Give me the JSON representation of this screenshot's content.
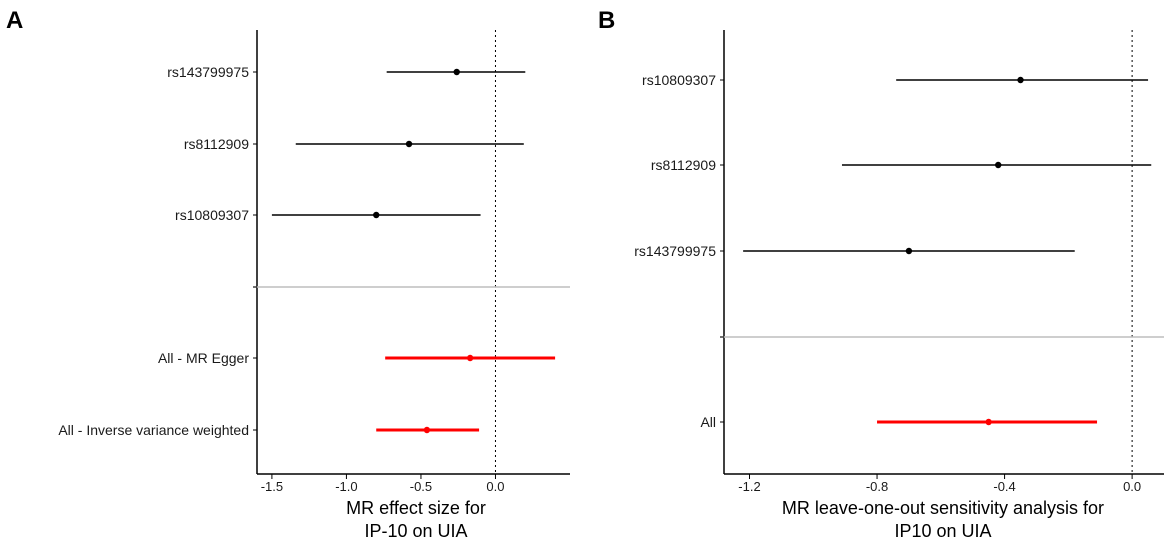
{
  "chart_data": [
    {
      "type": "forest",
      "panel_label": "A",
      "xlabel_lines": [
        "MR effect size for",
        "IP-10 on UIA"
      ],
      "xlim": [
        -1.6,
        0.5
      ],
      "xticks": [
        -1.5,
        -1.0,
        -0.5,
        0.0
      ],
      "xtick_labels": [
        "-1.5",
        "-1.0",
        "-0.5",
        "0.0"
      ],
      "reference_line_x": 0,
      "snp_rows": [
        {
          "label": "rs143799975",
          "estimate": -0.26,
          "lower": -0.73,
          "upper": 0.2,
          "color": "#000000"
        },
        {
          "label": "rs8112909",
          "estimate": -0.58,
          "lower": -1.34,
          "upper": 0.19,
          "color": "#000000"
        },
        {
          "label": "rs10809307",
          "estimate": -0.8,
          "lower": -1.5,
          "upper": -0.1,
          "color": "#000000"
        }
      ],
      "summary_rows": [
        {
          "label": "All - MR Egger",
          "estimate": -0.17,
          "lower": -0.74,
          "upper": 0.4,
          "color": "#ff0000"
        },
        {
          "label": "All - Inverse variance weighted",
          "estimate": -0.46,
          "lower": -0.8,
          "upper": -0.11,
          "color": "#ff0000"
        }
      ]
    },
    {
      "type": "forest",
      "panel_label": "B",
      "xlabel_lines": [
        "MR leave-one-out sensitivity analysis for",
        "IP10 on UIA"
      ],
      "xlim": [
        -1.28,
        0.1
      ],
      "xticks": [
        -1.2,
        -0.8,
        -0.4,
        0.0
      ],
      "xtick_labels": [
        "-1.2",
        "-0.8",
        "-0.4",
        "0.0"
      ],
      "reference_line_x": 0,
      "snp_rows": [
        {
          "label": "rs10809307",
          "estimate": -0.35,
          "lower": -0.74,
          "upper": 0.05,
          "color": "#000000"
        },
        {
          "label": "rs8112909",
          "estimate": -0.42,
          "lower": -0.91,
          "upper": 0.06,
          "color": "#000000"
        },
        {
          "label": "rs143799975",
          "estimate": -0.7,
          "lower": -1.22,
          "upper": -0.18,
          "color": "#000000"
        }
      ],
      "summary_rows": [
        {
          "label": "All",
          "estimate": -0.45,
          "lower": -0.8,
          "upper": -0.11,
          "color": "#ff0000"
        }
      ]
    }
  ]
}
